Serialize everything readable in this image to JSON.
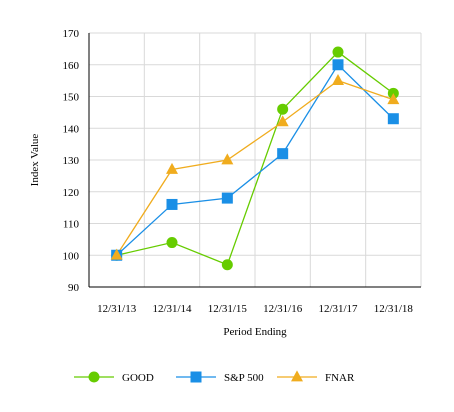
{
  "chart_data": {
    "type": "line",
    "title": "",
    "xlabel": "Period Ending",
    "ylabel": "Index Value",
    "categories": [
      "12/31/13",
      "12/31/14",
      "12/31/15",
      "12/31/16",
      "12/31/17",
      "12/31/18"
    ],
    "ylim": [
      90,
      170
    ],
    "yticks": [
      90,
      100,
      110,
      120,
      130,
      140,
      150,
      160,
      170
    ],
    "grid": true,
    "legend_position": "bottom",
    "series": [
      {
        "name": "GOOD",
        "marker": "circle",
        "color": "#66cc00",
        "values": [
          100,
          104,
          97,
          146,
          164,
          151
        ]
      },
      {
        "name": "S&P 500",
        "marker": "square",
        "color": "#1a8fe6",
        "values": [
          100,
          116,
          118,
          132,
          160,
          143
        ]
      },
      {
        "name": "FNAR",
        "marker": "triangle",
        "color": "#f0ac1e",
        "values": [
          100,
          127,
          130,
          142,
          155,
          149
        ]
      }
    ]
  }
}
